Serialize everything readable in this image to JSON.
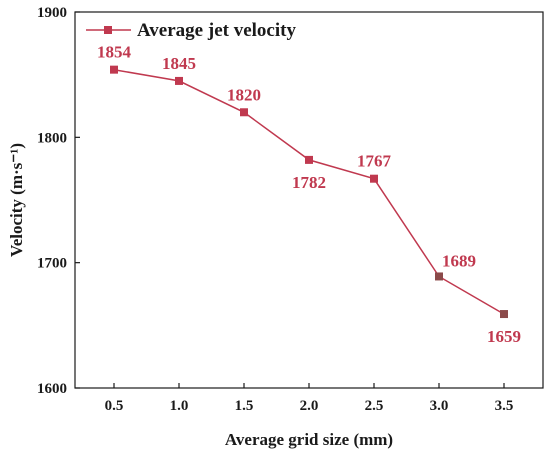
{
  "chart_data": {
    "type": "line",
    "title": "",
    "xlabel": "Average grid size (mm)",
    "ylabel": "Velocity (m·s⁻¹)",
    "xlim": [
      0.2,
      3.8
    ],
    "ylim": [
      1600,
      1900
    ],
    "x_ticks": [
      "0.5",
      "1.0",
      "1.5",
      "2.0",
      "2.5",
      "3.0",
      "3.5"
    ],
    "y_ticks": [
      "1600",
      "1700",
      "1800",
      "1900"
    ],
    "grid": false,
    "legend_position": "top-left",
    "series": [
      {
        "name": "Average jet velocity",
        "color": "#c0394f",
        "marker": "square",
        "x": [
          0.5,
          1.0,
          1.5,
          2.0,
          2.5,
          3.0,
          3.5
        ],
        "values": [
          1854,
          1845,
          1820,
          1782,
          1767,
          1689,
          1659
        ],
        "labels": [
          "1854",
          "1845",
          "1820",
          "1782",
          "1767",
          "1689",
          "1659"
        ]
      }
    ]
  }
}
